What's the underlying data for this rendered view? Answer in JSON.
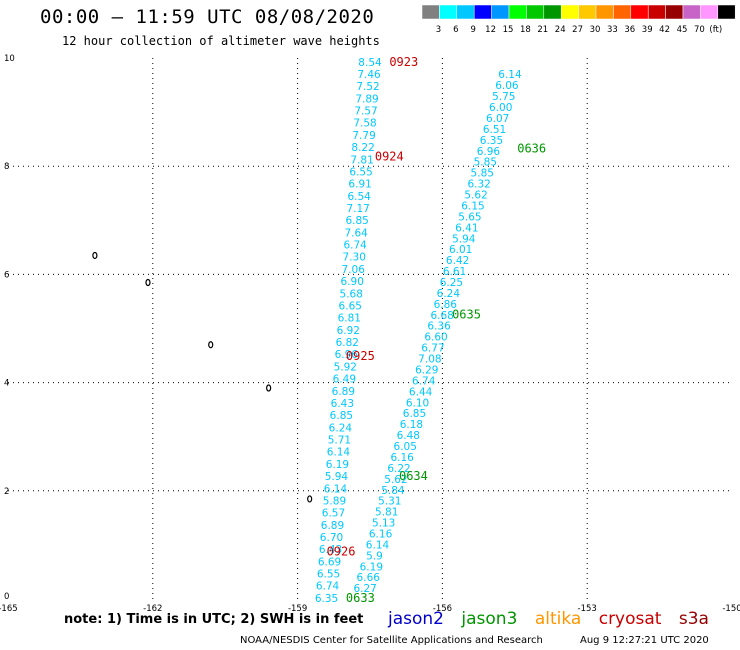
{
  "header": {
    "title": "00:00 – 11:59 UTC 08/08/2020",
    "subtitle": "12 hour collection of altimeter wave heights"
  },
  "scale": {
    "colors": [
      "#808080",
      "#00ffff",
      "#00c8ff",
      "#0000ff",
      "#0096ff",
      "#00ff00",
      "#00c800",
      "#009600",
      "#ffff00",
      "#ffc800",
      "#ff9600",
      "#ff6400",
      "#ff0000",
      "#c80000",
      "#960000",
      "#c864c8",
      "#ff96ff",
      "#000000"
    ],
    "labels": [
      "3",
      "6",
      "9",
      "12",
      "15",
      "18",
      "21",
      "24",
      "27",
      "30",
      "33",
      "36",
      "39",
      "42",
      "45",
      "70",
      "(ft)"
    ]
  },
  "axes": {
    "x_ticks": [
      "-165",
      "-162",
      "-159",
      "-156",
      "-153",
      "-150"
    ],
    "y_ticks": [
      "0",
      "2",
      "4",
      "6",
      "8",
      "10"
    ]
  },
  "chart_data": {
    "type": "scatter",
    "x_label": "",
    "y_label": "",
    "xlim": [
      -165,
      -150
    ],
    "ylim": [
      0,
      10
    ],
    "grid": true,
    "value_color": "#00c8ff",
    "tracks": [
      {
        "satellite": "cryosat",
        "values": [
          "8.54",
          "7.46",
          "7.52",
          "7.89",
          "7.57",
          "7.58",
          "7.79",
          "8.22",
          "7.81",
          "6.55",
          "6.91",
          "6.54",
          "7.17",
          "6.85",
          "7.64",
          "6.74",
          "7.30",
          "7.06",
          "6.90",
          "5.68",
          "6.65",
          "6.81",
          "6.92",
          "6.82",
          "6.96",
          "5.92",
          "6.49",
          "6.89",
          "6.43",
          "6.85",
          "6.24",
          "5.71",
          "6.14",
          "6.19",
          "5.94",
          "6.14",
          "5.89",
          "6.57",
          "6.89",
          "6.70",
          "6.43",
          "6.69",
          "6.55",
          "6.74",
          "6.35"
        ],
        "lon_start": -157.5,
        "lon_end": -158.4,
        "lat_start": 9.93,
        "lat_end": 0.02
      },
      {
        "satellite": "jason3",
        "values": [
          "6.14",
          "6.06",
          "5.75",
          "6.00",
          "6.07",
          "6.51",
          "6.35",
          "6.96",
          "5.85",
          "5.85",
          "6.32",
          "5.62",
          "6.15",
          "5.65",
          "6.41",
          "5.94",
          "6.01",
          "6.42",
          "6.61",
          "6.25",
          "6.24",
          "6.86",
          "6.68",
          "6.36",
          "6.60",
          "6.77",
          "7.08",
          "6.29",
          "6.74",
          "6.44",
          "6.10",
          "6.85",
          "6.18",
          "6.48",
          "6.05",
          "6.16",
          "6.22",
          "5.62",
          "5.84",
          "5.31",
          "5.81",
          "5.13",
          "6.16",
          "6.14",
          "5.9",
          "6.19",
          "6.66",
          "6.27"
        ],
        "lon_start": -154.6,
        "lon_end": -157.6,
        "lat_start": 9.7,
        "lat_end": 0.2
      }
    ],
    "time_labels": [
      {
        "text": "0923",
        "satellite": "cryosat",
        "lon": -156.8,
        "lat": 9.93
      },
      {
        "text": "0924",
        "satellite": "cryosat",
        "lon": -157.1,
        "lat": 8.18
      },
      {
        "text": "0925",
        "satellite": "cryosat",
        "lon": -157.7,
        "lat": 4.49
      },
      {
        "text": "0926",
        "satellite": "cryosat",
        "lon": -158.1,
        "lat": 0.88
      },
      {
        "text": "0636",
        "satellite": "jason3",
        "lon": -154.15,
        "lat": 8.33
      },
      {
        "text": "0635",
        "satellite": "jason3",
        "lon": -155.5,
        "lat": 5.26
      },
      {
        "text": "0634",
        "satellite": "jason3",
        "lon": -156.6,
        "lat": 2.27
      },
      {
        "text": "0633",
        "satellite": "jason3",
        "lon": -157.7,
        "lat": 0.02
      }
    ]
  },
  "satellite_colors": {
    "jason2": "#0000c8",
    "jason3": "#009600",
    "altika": "#ff9600",
    "cryosat": "#c80000",
    "s3a": "#960000"
  },
  "footer": {
    "note": "note:  1) Time is in UTC;  2) SWH is in feet",
    "satellites": [
      "jason2",
      "jason3",
      "altika",
      "cryosat",
      "s3a"
    ],
    "credit": "NOAA/NESDIS Center for Satellite Applications and Research",
    "date": "Aug  9 12:27:21 UTC 2020"
  }
}
